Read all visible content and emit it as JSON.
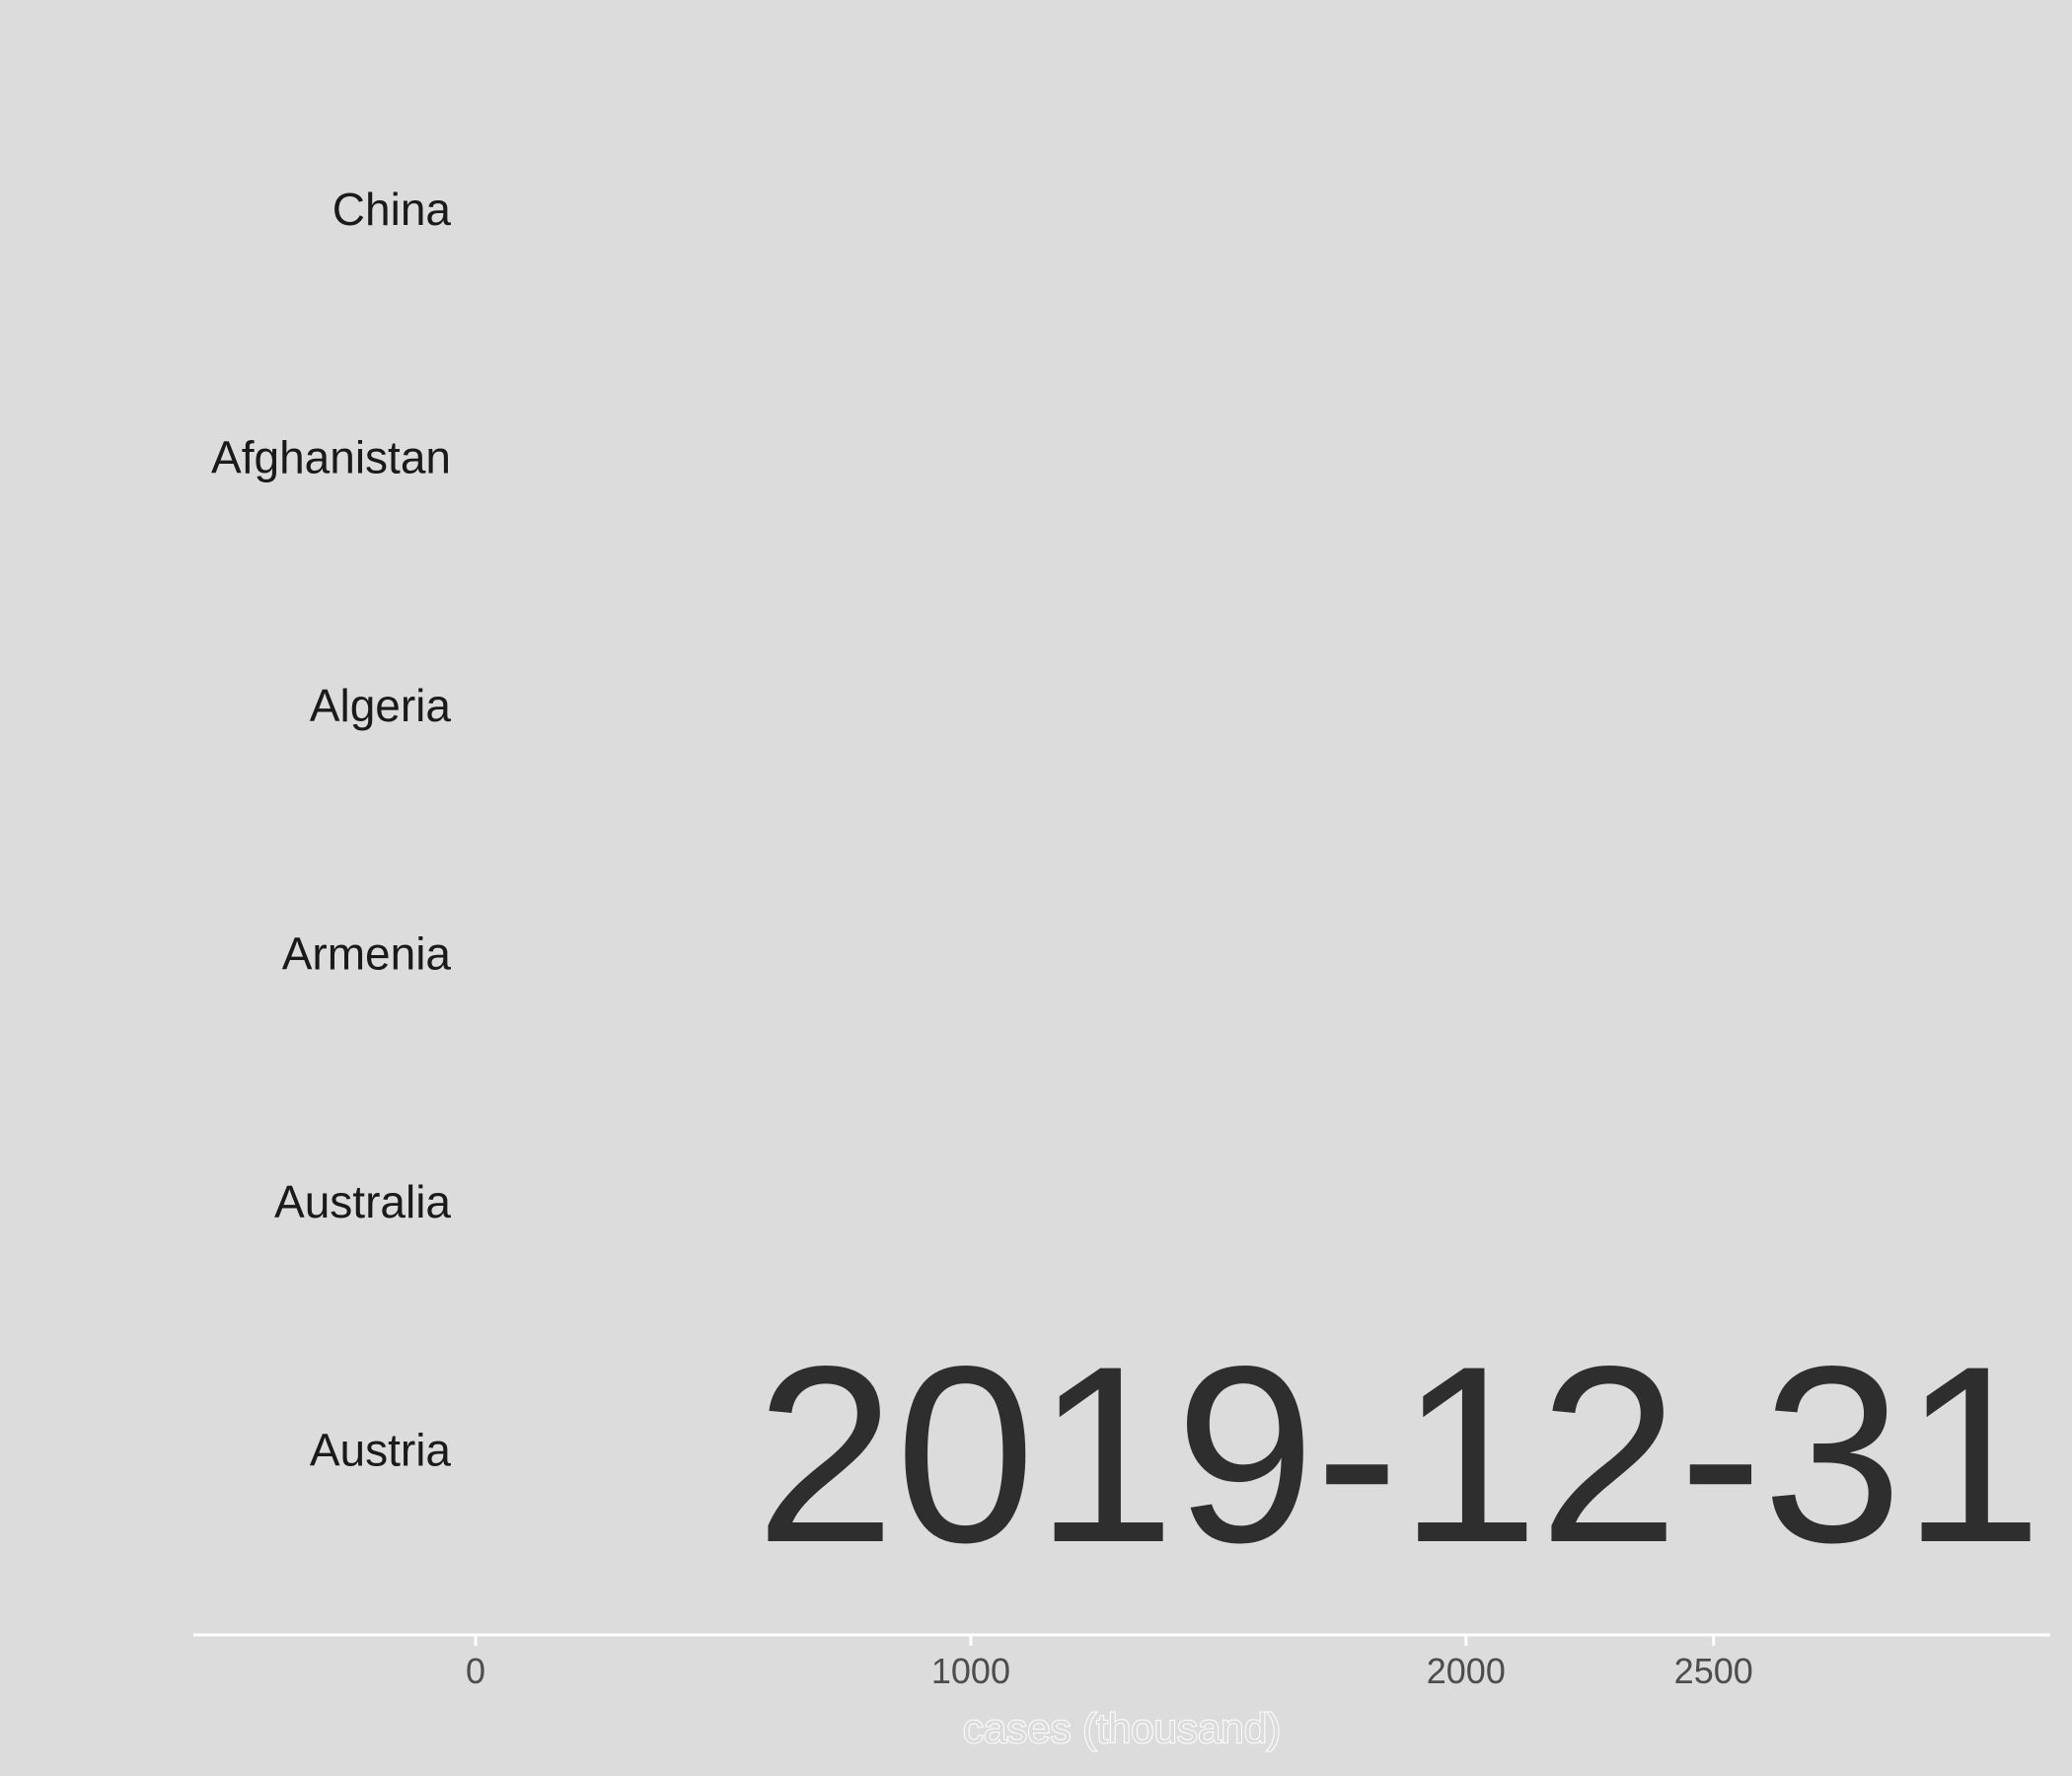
{
  "chart_data": {
    "type": "bar",
    "categories": [
      "China",
      "Afghanistan",
      "Algeria",
      "Armenia",
      "Australia",
      "Austria"
    ],
    "values": [
      0,
      0,
      0,
      0,
      0,
      0
    ],
    "xlabel": "cases (thousand)",
    "ylabel": "",
    "x_ticks": [
      0,
      1000,
      2000,
      2500
    ],
    "xlim": [
      -570,
      3180
    ],
    "grid": false,
    "annotation": "2019-12-31",
    "background_color": "#dcdcdc",
    "axis_line_color": "#ffffff"
  }
}
